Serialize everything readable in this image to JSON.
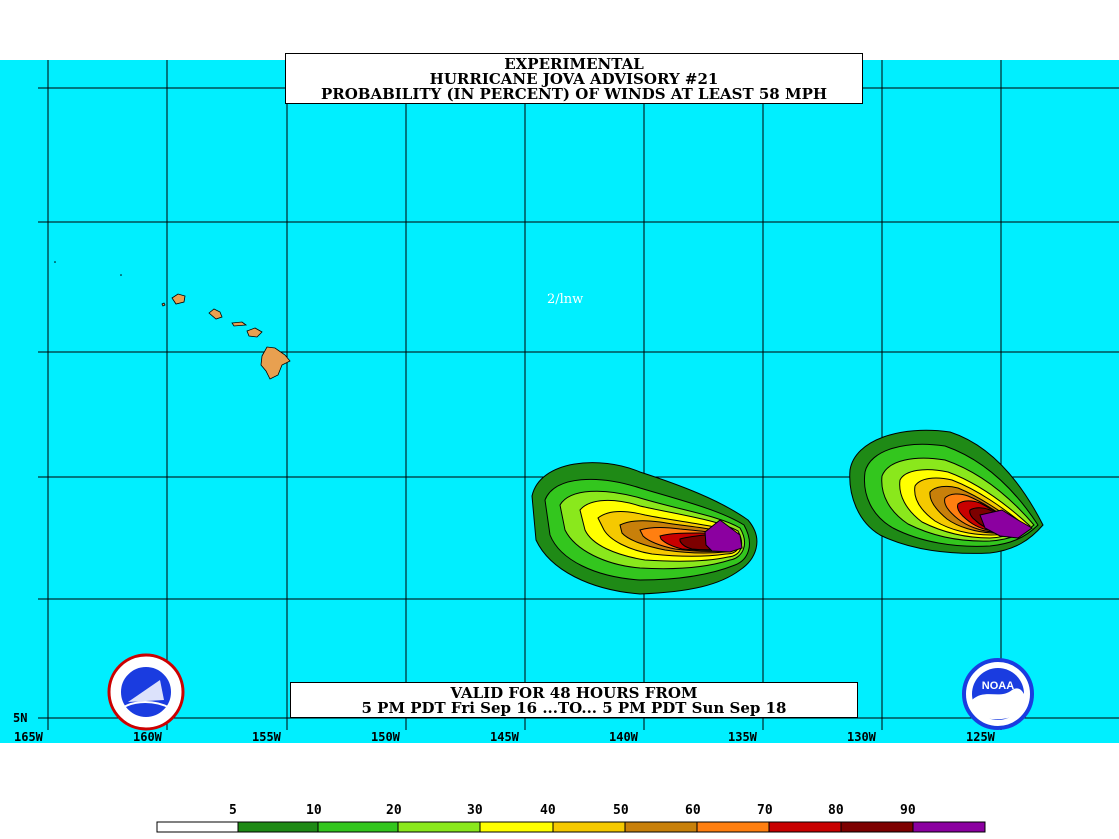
{
  "title": {
    "line1": "EXPERIMENTAL",
    "line2": "HURRICANE JOVA ADVISORY #21",
    "line3": "PROBABILITY (IN PERCENT) OF WINDS AT LEAST 58 MPH"
  },
  "valid": {
    "line1": "VALID FOR 48 HOURS FROM",
    "line2": "5 PM PDT Fri Sep 16 ...TO... 5 PM PDT Sun Sep 18"
  },
  "credit": "2/lnw",
  "lat_labels": [
    "5N"
  ],
  "lon_labels": [
    "165W",
    "160W",
    "155W",
    "150W",
    "145W",
    "140W",
    "135W",
    "130W",
    "125W"
  ],
  "legend": {
    "thresholds": [
      "5",
      "10",
      "20",
      "30",
      "40",
      "50",
      "60",
      "70",
      "80",
      "90"
    ],
    "colors": [
      "#ffffff",
      "#1f8a16",
      "#33c61e",
      "#8ae81c",
      "#ffff00",
      "#f5c900",
      "#c8800a",
      "#ff7f10",
      "#c80000",
      "#7d0000",
      "#8b00a0"
    ]
  },
  "map_colors": {
    "ocean": "#00efff",
    "land": "#e8a050",
    "grid": "#000000"
  },
  "logos": {
    "left": "nws-logo-icon",
    "right": "noaa-logo-icon"
  }
}
